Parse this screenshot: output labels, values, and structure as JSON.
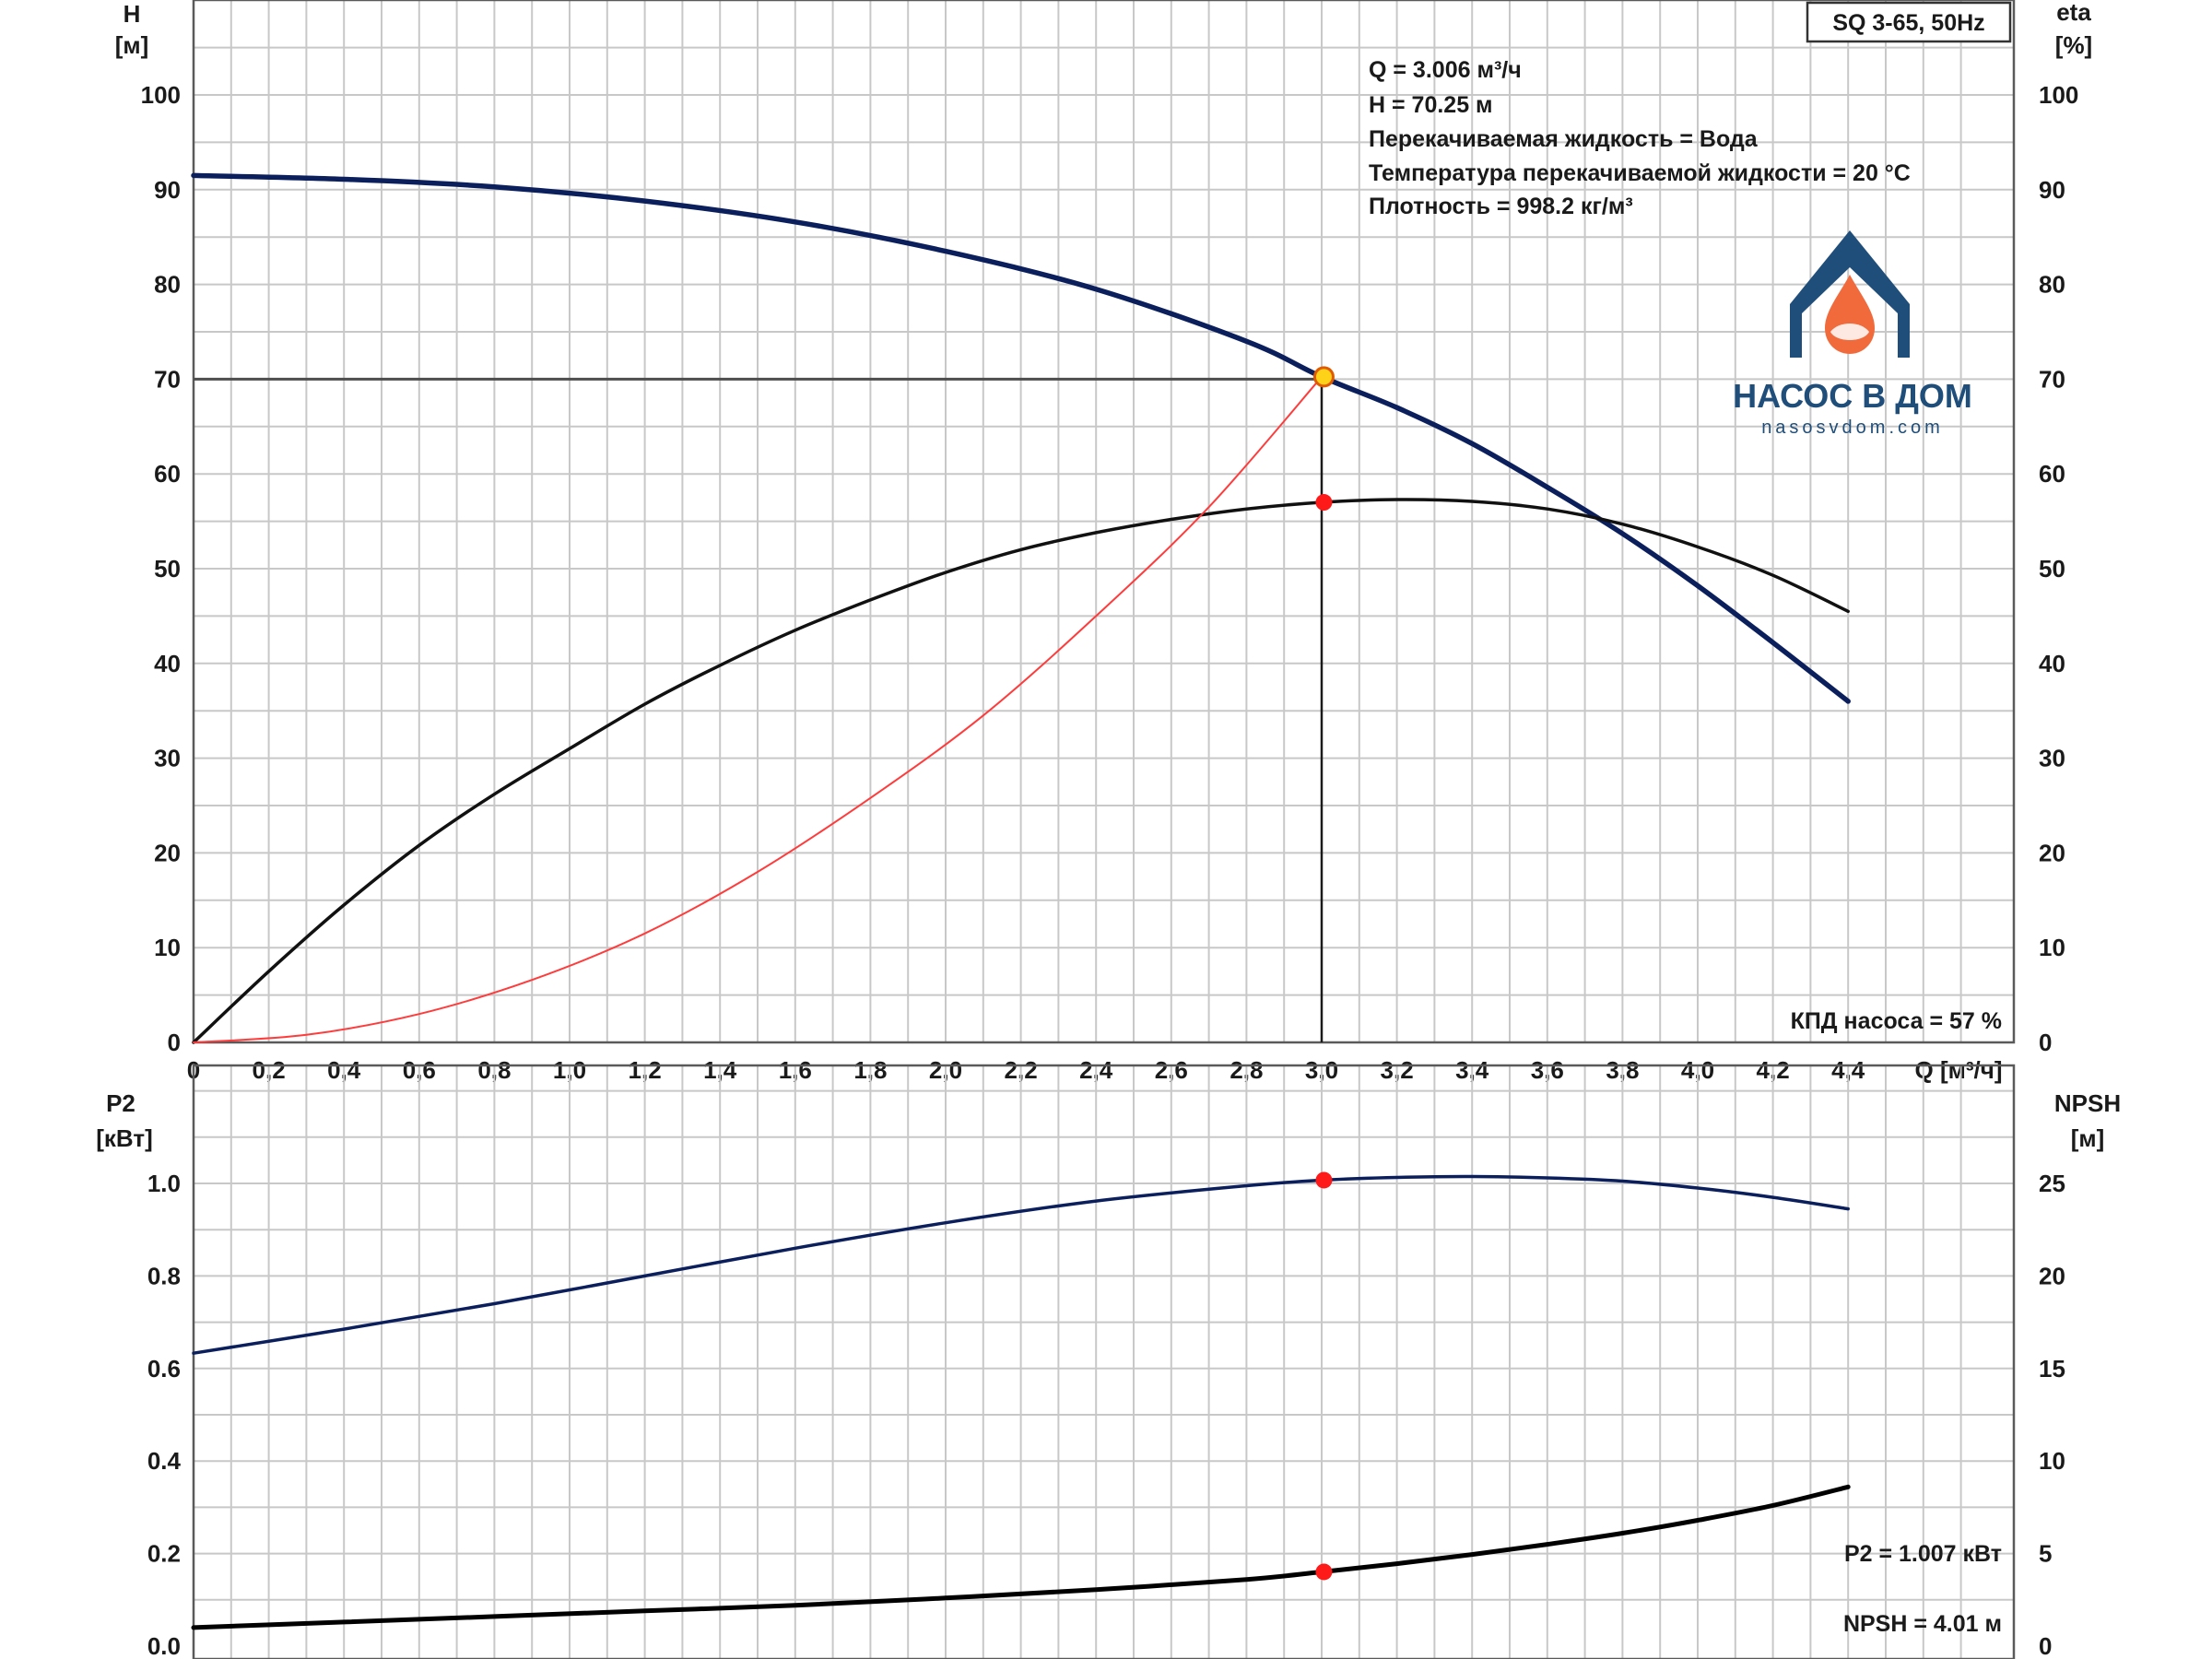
{
  "brand": {
    "name": "НАСОС В ДОМ",
    "site": "nasosvdom.com",
    "color_blue": "#1f4e7a",
    "color_orange": "#f06a3c"
  },
  "pump_label": "SQ 3-65, 50Hz",
  "info_lines": [
    "Q = 3.006 м³/ч",
    "H = 70.25 м",
    "Перекачиваемая жидкость = Вода",
    "Температура перекачиваемой жидкости = 20 °C",
    "Плотность = 998.2 кг/м³"
  ],
  "efficiency_note": "КПД насоса = 57 %",
  "power_note": "P2 = 1.007 кВт",
  "npsh_note": "NPSH = 4.01 м",
  "colors": {
    "head": "#0b1f5c",
    "efficiency": "#111111",
    "system": "#ff3b3b",
    "power": "#0b1f5c",
    "npsh": "#000000",
    "duty_point": "#ff1a1a",
    "grid": "#c8c8c8"
  },
  "chart_data": [
    {
      "type": "line",
      "x_ticks": [
        "0",
        "0,2",
        "0,4",
        "0,6",
        "0,8",
        "1,0",
        "1,2",
        "1,4",
        "1,6",
        "1,8",
        "2,0",
        "2,2",
        "2,4",
        "2,6",
        "2,8",
        "3,0",
        "3,2",
        "3,4",
        "3,6",
        "3,8",
        "4,0",
        "4,2",
        "4,4"
      ],
      "xlabel": "Q [м³/ч]",
      "xlim": [
        0,
        4.8
      ],
      "y_left_label": [
        "H",
        "[м]"
      ],
      "y_left_ticks": [
        "0",
        "10",
        "20",
        "30",
        "40",
        "50",
        "60",
        "70",
        "80",
        "90",
        "100"
      ],
      "ylim_left": [
        0,
        110
      ],
      "y_right_label": [
        "eta",
        "[%]"
      ],
      "y_right_ticks": [
        "0",
        "10",
        "20",
        "30",
        "40",
        "50",
        "60",
        "70",
        "80",
        "90",
        "100"
      ],
      "ylim_right": [
        0,
        110
      ],
      "grid": true,
      "series": [
        {
          "key": "head",
          "axis": "left",
          "x": [
            0,
            0.4,
            0.8,
            1.2,
            1.6,
            2.0,
            2.4,
            2.8,
            3.0,
            3.2,
            3.4,
            3.6,
            3.8,
            4.0,
            4.2,
            4.4
          ],
          "y": [
            91.5,
            91.1,
            90.3,
            88.8,
            86.6,
            83.5,
            79.5,
            74.0,
            70.25,
            67.0,
            63.2,
            58.6,
            53.7,
            48.2,
            42.2,
            36.0
          ]
        },
        {
          "key": "efficiency",
          "axis": "right",
          "x": [
            0,
            0.2,
            0.4,
            0.6,
            0.8,
            1.0,
            1.2,
            1.4,
            1.6,
            1.8,
            2.0,
            2.2,
            2.4,
            2.6,
            2.8,
            3.0,
            3.2,
            3.4,
            3.6,
            3.8,
            4.0,
            4.2,
            4.4
          ],
          "y": [
            0,
            7.5,
            14.5,
            20.8,
            26.2,
            31.0,
            35.7,
            39.8,
            43.5,
            46.7,
            49.6,
            52.0,
            53.8,
            55.2,
            56.3,
            57.0,
            57.3,
            57.1,
            56.3,
            54.7,
            52.3,
            49.3,
            45.5
          ]
        },
        {
          "key": "system",
          "axis": "left",
          "x": [
            0,
            0.3,
            0.6,
            0.9,
            1.2,
            1.5,
            1.8,
            2.1,
            2.4,
            2.7,
            3.0
          ],
          "y": [
            0,
            0.8,
            3.0,
            6.6,
            11.5,
            18.0,
            25.8,
            34.5,
            45.0,
            56.5,
            70.25
          ]
        }
      ],
      "reference_lines": {
        "h_at": 70,
        "v_at": 3.0
      },
      "duty_point": {
        "q": 3.006,
        "h": 70.25,
        "eta": 57
      }
    },
    {
      "type": "line",
      "x_ticks": [],
      "xlim": [
        0,
        4.8
      ],
      "y_left_label": [
        "P2",
        "[кВт]"
      ],
      "y_left_ticks": [
        "0.0",
        "0.2",
        "0.4",
        "0.6",
        "0.8",
        "1.0"
      ],
      "ylim_left": [
        0,
        1.2
      ],
      "y_right_label": [
        "NPSH",
        "[м]"
      ],
      "y_right_ticks": [
        "0",
        "5",
        "10",
        "15",
        "20",
        "25"
      ],
      "ylim_right": [
        0,
        30
      ],
      "grid": true,
      "series": [
        {
          "key": "power",
          "axis": "left",
          "x": [
            0,
            0.4,
            0.8,
            1.2,
            1.6,
            2.0,
            2.4,
            2.8,
            3.0,
            3.2,
            3.4,
            3.6,
            3.8,
            4.0,
            4.2,
            4.4
          ],
          "y": [
            0.633,
            0.685,
            0.74,
            0.8,
            0.86,
            0.915,
            0.962,
            0.995,
            1.007,
            1.013,
            1.015,
            1.012,
            1.005,
            0.99,
            0.97,
            0.945
          ]
        },
        {
          "key": "npsh",
          "axis": "right",
          "x": [
            0,
            0.4,
            0.8,
            1.2,
            1.6,
            2.0,
            2.4,
            2.8,
            3.0,
            3.2,
            3.4,
            3.6,
            3.8,
            4.0,
            4.2,
            4.4
          ],
          "y": [
            1.0,
            1.3,
            1.6,
            1.9,
            2.2,
            2.6,
            3.05,
            3.6,
            4.01,
            4.45,
            4.95,
            5.5,
            6.1,
            6.8,
            7.6,
            8.6
          ]
        }
      ],
      "duty_point": {
        "q": 3.006,
        "p2": 1.007,
        "npsh": 4.01
      }
    }
  ]
}
